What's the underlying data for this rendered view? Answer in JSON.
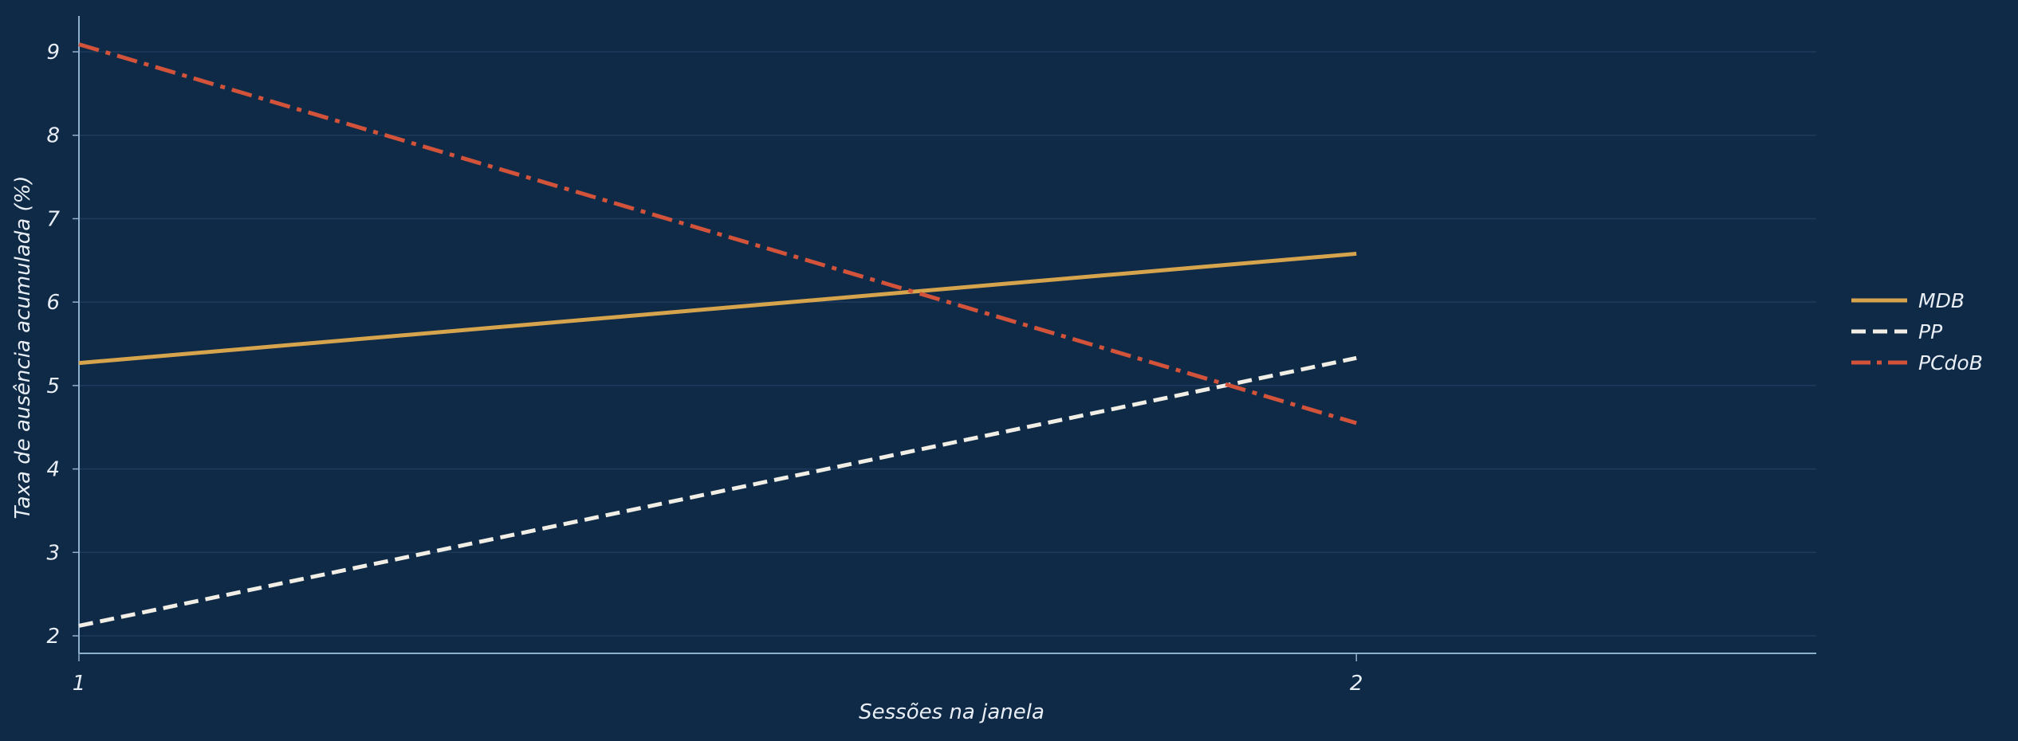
{
  "colors": {
    "background": "#0f2a47",
    "axis": "#8fb0cc",
    "grid": "#1e3b5c",
    "text": "#e9eef5"
  },
  "chart_data": {
    "type": "line",
    "xlabel": "Sessões na janela",
    "ylabel": "Taxa de ausência acumulada (%)",
    "x": [
      1,
      2
    ],
    "xlim": [
      1,
      2.36
    ],
    "ylim": [
      1.79,
      9.43
    ],
    "x_ticks": [
      1,
      2
    ],
    "x_tick_labels": [
      "1",
      "2"
    ],
    "y_ticks": [
      2,
      3,
      4,
      5,
      6,
      7,
      8,
      9
    ],
    "y_tick_labels": [
      "2",
      "3",
      "4",
      "5",
      "6",
      "7",
      "8",
      "9"
    ],
    "grid": "horizontal",
    "legend_position": "right",
    "series": [
      {
        "name": "MDB",
        "values": [
          5.27,
          6.58
        ],
        "color": "#d6a44c",
        "dash": "solid"
      },
      {
        "name": "PP",
        "values": [
          2.12,
          5.33
        ],
        "color": "#f1eee6",
        "dash": "dashed"
      },
      {
        "name": "PCdoB",
        "values": [
          9.09,
          4.55
        ],
        "color": "#d2533a",
        "dash": "dashdot"
      }
    ]
  }
}
